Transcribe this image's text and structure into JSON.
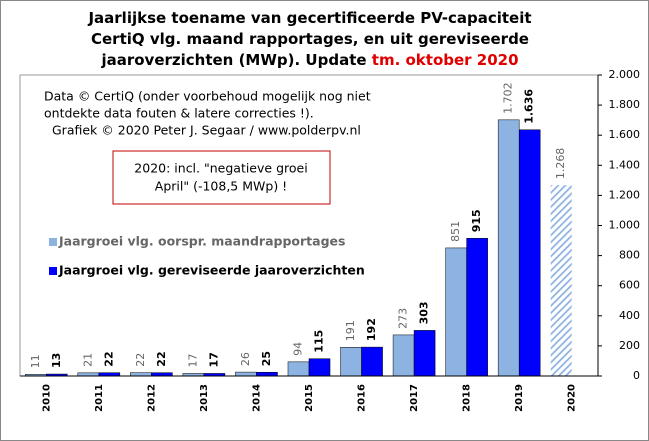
{
  "chart_data": {
    "type": "bar",
    "title": [
      "Jaarlijkse toename van gecertificeerde PV-capaciteit",
      "CertiQ vlg. maand rapportages, en uit gereviseerde",
      "jaaroverzichten (MWp). Update"
    ],
    "title_highlight": "tm. oktober 2020",
    "annotations": [
      "Data © CertiQ (onder voorbehoud mogelijk nog niet",
      "ontdekte data fouten & latere correcties !).",
      "Grafiek © 2020 Peter J. Segaar / www.polderpv.nl"
    ],
    "note_box": [
      "2020: incl. \"negatieve groei",
      "April\" (-108,5 MWp) !"
    ],
    "categories": [
      "2010",
      "2011",
      "2012",
      "2013",
      "2014",
      "2015",
      "2016",
      "2017",
      "2018",
      "2019",
      "2020"
    ],
    "series": [
      {
        "name": "Jaargroei vlg. oorspr. maandrapportages",
        "color": "#8db3e2",
        "values": [
          11,
          21,
          22,
          17,
          26,
          94,
          191,
          273,
          851,
          1702,
          1268
        ],
        "value_labels": [
          "11",
          "21",
          "22",
          "17",
          "26",
          "94",
          "191",
          "273",
          "851",
          "1.702",
          "1.268"
        ],
        "hatched_index": 10
      },
      {
        "name": "Jaargroei vlg. gereviseerde jaaroverzichten",
        "color": "#0000ff",
        "values": [
          13,
          22,
          22,
          17,
          25,
          115,
          192,
          303,
          915,
          1636,
          null
        ],
        "value_labels": [
          "13",
          "22",
          "22",
          "17",
          "25",
          "115",
          "192",
          "303",
          "915",
          "1.636",
          null
        ]
      }
    ],
    "ylim": [
      0,
      2000
    ],
    "yticks": [
      0,
      200,
      400,
      600,
      800,
      {
        "value": 1000,
        "label": "1.000"
      },
      {
        "value": 1200,
        "label": "1.200"
      },
      {
        "value": 1400,
        "label": "1.400"
      },
      {
        "value": 1600,
        "label": "1.600"
      },
      {
        "value": 1800,
        "label": "1.800"
      },
      {
        "value": 2000,
        "label": "2.000"
      }
    ],
    "grid": false,
    "legend": "left"
  }
}
